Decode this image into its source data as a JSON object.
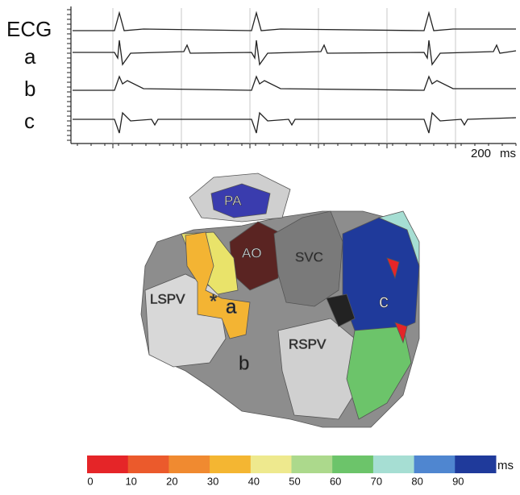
{
  "traces": {
    "labels": [
      "ECG",
      "a",
      "b",
      "c"
    ],
    "scale": "200",
    "scale_unit": "ms"
  },
  "map": {
    "labels": {
      "pa": "PA",
      "ao": "AO",
      "svc": "SVC",
      "lspv": "LSPV",
      "rspv": "RSPV",
      "star": "*",
      "a": "a",
      "b": "b",
      "c": "c"
    }
  },
  "colorbar": {
    "ticks": [
      0,
      10,
      20,
      30,
      40,
      50,
      60,
      70,
      80,
      90
    ],
    "unit": "ms",
    "colors": [
      "#e52528",
      "#eb5a2c",
      "#f08a30",
      "#f4b632",
      "#eee98e",
      "#acd98c",
      "#6cc46a",
      "#a6ded3",
      "#4f86d0",
      "#1f3a9b"
    ]
  }
}
